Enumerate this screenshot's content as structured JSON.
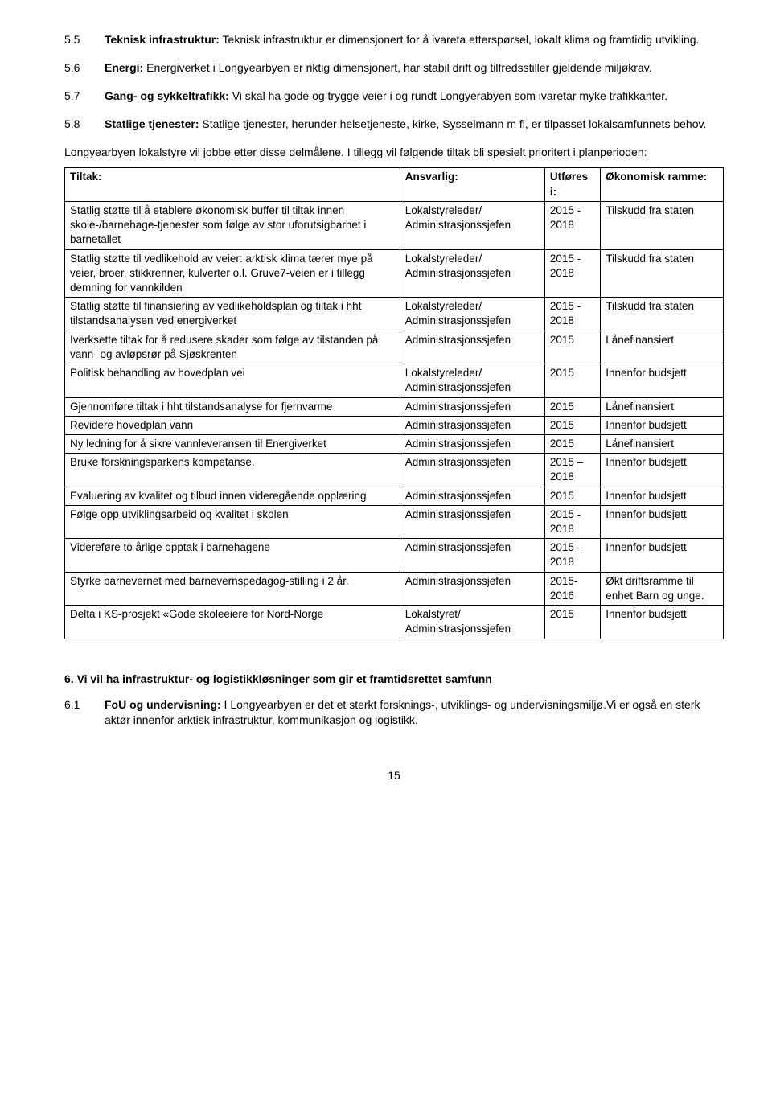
{
  "items": [
    {
      "num": "5.5",
      "label": "Teknisk infrastruktur:",
      "text": " Teknisk infrastruktur er dimensjonert for å ivareta etterspørsel, lokalt klima og framtidig utvikling."
    },
    {
      "num": "5.6",
      "label": "Energi:",
      "text": " Energiverket i Longyearbyen er riktig dimensjonert, har stabil drift og tilfredsstiller gjeldende miljøkrav."
    },
    {
      "num": "5.7",
      "label": "Gang- og sykkeltrafikk:",
      "text": " Vi skal ha gode og trygge veier i og rundt Longyerabyen som ivaretar myke trafikkanter."
    },
    {
      "num": "5.8",
      "label": "Statlige tjenester:",
      "text": " Statlige tjenester, herunder helsetjeneste, kirke, Sysselmann m fl, er tilpasset lokalsamfunnets behov."
    }
  ],
  "intro": "Longyearbyen lokalstyre vil jobbe etter disse delmålene. I tillegg vil følgende tiltak bli spesielt prioritert i planperioden:",
  "table": {
    "headers": [
      "Tiltak:",
      "Ansvarlig:",
      "Utføres i:",
      "Økonomisk ramme:"
    ],
    "rows": [
      [
        "Statlig støtte til å etablere økonomisk buffer til tiltak innen skole-/barnehage-tjenester som følge av stor uforutsigbarhet i barnetallet",
        "Lokalstyreleder/ Administrasjonssjefen",
        "2015 - 2018",
        "Tilskudd fra staten"
      ],
      [
        "Statlig støtte til vedlikehold av veier: arktisk klima tærer mye på veier, broer, stikkrenner, kulverter o.l. Gruve7-veien er i tillegg demning for vannkilden",
        "Lokalstyreleder/ Administrasjonssjefen",
        "2015 - 2018",
        "Tilskudd fra staten"
      ],
      [
        "Statlig støtte til finansiering av vedlikeholdsplan og tiltak i hht tilstandsanalysen ved energiverket",
        "Lokalstyreleder/ Administrasjonssjefen",
        "2015 - 2018",
        "Tilskudd fra staten"
      ],
      [
        "Iverksette tiltak for å redusere skader som følge av tilstanden på vann- og avløpsrør på Sjøskrenten",
        "Administrasjonssjefen",
        "2015",
        "Lånefinansiert"
      ],
      [
        "Politisk behandling av hovedplan vei",
        "Lokalstyreleder/ Administrasjonssjefen",
        "2015",
        "Innenfor budsjett"
      ],
      [
        "Gjennomføre tiltak i hht tilstandsanalyse for fjernvarme",
        "Administrasjonssjefen",
        "2015",
        "Lånefinansiert"
      ],
      [
        "Revidere hovedplan vann",
        "Administrasjonssjefen",
        "2015",
        "Innenfor budsjett"
      ],
      [
        "Ny ledning for å sikre vannleveransen til Energiverket",
        "Administrasjonssjefen",
        "2015",
        "Lånefinansiert"
      ],
      [
        "Bruke forskningsparkens kompetanse.",
        "Administrasjonssjefen",
        "2015 –2018",
        "Innenfor budsjett"
      ],
      [
        "Evaluering av kvalitet og tilbud innen videregående opplæring",
        "Administrasjonssjefen",
        "2015",
        "Innenfor budsjett"
      ],
      [
        "Følge opp utviklingsarbeid og kvalitet i skolen",
        "Administrasjonssjefen",
        "2015 - 2018",
        "Innenfor budsjett"
      ],
      [
        "Videreføre to årlige opptak i barnehagene",
        "Administrasjonssjefen",
        "2015 –2018",
        "Innenfor budsjett"
      ],
      [
        "Styrke barnevernet med barnevernspedagog-stilling i 2 år.",
        "Administrasjonssjefen",
        "2015-2016",
        "Økt driftsramme til enhet Barn og unge."
      ],
      [
        "Delta i KS-prosjekt «Gode skoleeiere for Nord-Norge",
        "Lokalstyret/ Administrasjonssjefen",
        "2015",
        "Innenfor budsjett"
      ]
    ]
  },
  "section6": {
    "heading": "6.   Vi vil ha infrastruktur- og logistikkløsninger som gir et framtidsrettet samfunn",
    "sub": {
      "num": "6.1",
      "label": "FoU og undervisning:",
      "text": " I Longyearbyen er det et sterkt forsknings-, utviklings- og undervisningsmiljø.Vi er også en sterk aktør innenfor arktisk infrastruktur, kommunikasjon og logistikk."
    }
  },
  "pageNum": "15"
}
